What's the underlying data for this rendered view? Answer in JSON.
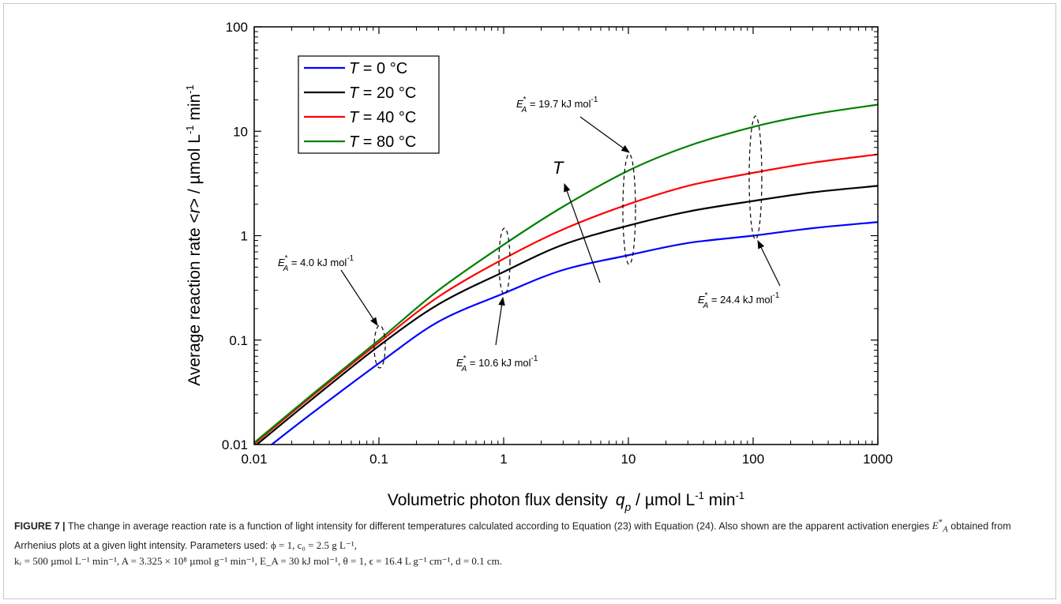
{
  "chart_data": {
    "type": "line",
    "x_scale": "log",
    "y_scale": "log",
    "xlim": [
      0.01,
      1000
    ],
    "ylim": [
      0.01,
      100
    ],
    "x_ticks": [
      "0.01",
      "0.1",
      "1",
      "10",
      "100",
      "1000"
    ],
    "y_ticks": [
      "0.01",
      "0.1",
      "1",
      "10",
      "100"
    ],
    "xlabel_main": "Volumetric photon flux density",
    "xlabel_sym": "q",
    "xlabel_sub": "p",
    "xlabel_unit": " / µmol L",
    "xlabel_exp1": "-1",
    "xlabel_unit2": " min",
    "xlabel_exp2": "-1",
    "ylabel_main": "Average reaction rate  <",
    "ylabel_sym": "r",
    "ylabel_rest": "> / µmol L",
    "ylabel_exp1": "-1",
    "ylabel_unit2": " min",
    "ylabel_exp2": "-1",
    "legend_placement": "top-left",
    "series": [
      {
        "name_sym": "T",
        "name_rest": " =  0 °C",
        "color": "#0000ff",
        "x": [
          0.0138,
          0.03,
          0.1,
          0.3,
          1,
          3,
          10,
          30,
          100,
          300,
          1000
        ],
        "y": [
          0.01,
          0.0205,
          0.06,
          0.15,
          0.28,
          0.47,
          0.65,
          0.85,
          1.0,
          1.18,
          1.35
        ]
      },
      {
        "name_sym": "T",
        "name_rest": " = 20 °C",
        "color": "#000000",
        "x": [
          0.0105,
          0.03,
          0.1,
          0.3,
          1,
          3,
          10,
          30,
          100,
          300,
          1000
        ],
        "y": [
          0.01,
          0.028,
          0.088,
          0.22,
          0.45,
          0.82,
          1.25,
          1.7,
          2.15,
          2.6,
          3.0
        ]
      },
      {
        "name_sym": "T",
        "name_rest": " = 40 °C",
        "color": "#ff0000",
        "x": [
          0.01,
          0.03,
          0.1,
          0.3,
          1,
          3,
          10,
          30,
          100,
          300,
          1000
        ],
        "y": [
          0.0101,
          0.03,
          0.095,
          0.26,
          0.6,
          1.15,
          2.0,
          3.0,
          4.0,
          5.0,
          6.0
        ]
      },
      {
        "name_sym": "T",
        "name_rest": " = 80 °C",
        "color": "#008000",
        "x": [
          0.01,
          0.03,
          0.1,
          0.3,
          1,
          3,
          10,
          30,
          100,
          300,
          1000
        ],
        "y": [
          0.0104,
          0.031,
          0.1,
          0.3,
          0.82,
          1.9,
          4.2,
          7.2,
          11.0,
          14.5,
          18.0
        ]
      }
    ],
    "annotations": [
      {
        "sym": "E",
        "sub": "A",
        "sup": "*",
        "rest": " = 4.0 kJ mol",
        "exp": "-1"
      },
      {
        "sym": "E",
        "sub": "A",
        "sup": "*",
        "rest": " = 10.6 kJ mol",
        "exp": "-1"
      },
      {
        "sym": "E",
        "sub": "A",
        "sup": "*",
        "rest": " = 19.7 kJ mol",
        "exp": "-1"
      },
      {
        "sym": "E",
        "sub": "A",
        "sup": "*",
        "rest": " = 24.4 kJ mol",
        "exp": "-1"
      }
    ],
    "arrow_label": "T"
  },
  "caption": {
    "figure_label": "FIGURE 7 |",
    "text1": " The change in average reaction rate is a function of light intensity for different temperatures calculated according to Equation (23) with Equation (24). Also shown are the apparent activation energies ",
    "ea_sym": "E",
    "ea_sub": "A",
    "ea_sup": "*",
    "text2": " obtained from Arrhenius plots at a given light intensity. Parameters used: ",
    "params1": "ϕ = 1, c₀ = 2.5 g L⁻¹,",
    "params2": "kᵣ = 500 µmol L⁻¹ min⁻¹, A = 3.325 × 10⁸ µmol g⁻¹ min⁻¹, E_A = 30 kJ mol⁻¹, θ = 1, ϵ = 16.4 L g⁻¹ cm⁻¹, d = 0.1 cm."
  }
}
